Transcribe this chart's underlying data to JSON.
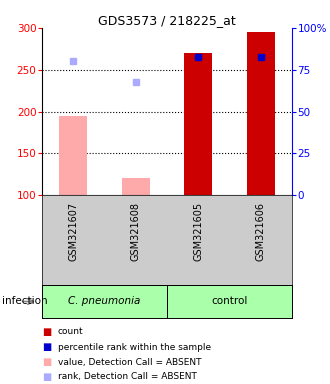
{
  "title": "GDS3573 / 218225_at",
  "samples": [
    "GSM321607",
    "GSM321608",
    "GSM321605",
    "GSM321606"
  ],
  "group_labels": [
    "C. pneumonia",
    "control"
  ],
  "ylim_left": [
    100,
    300
  ],
  "yticks_left": [
    100,
    150,
    200,
    250,
    300
  ],
  "yticks_right": [
    0,
    25,
    50,
    75,
    100
  ],
  "ytick_labels_right": [
    "0",
    "25",
    "50",
    "75",
    "100%"
  ],
  "bar_values": [
    195,
    120,
    270,
    295
  ],
  "bar_absent": [
    true,
    true,
    false,
    false
  ],
  "bar_color_present": "#cc0000",
  "bar_color_absent": "#ffaaaa",
  "rank_values": [
    80,
    67.5,
    82.5,
    82.5
  ],
  "rank_absent": [
    true,
    true,
    false,
    false
  ],
  "rank_color_present": "#0000cc",
  "rank_color_absent": "#aaaaff",
  "sample_bg_color": "#cccccc",
  "group_color": "#aaffaa",
  "legend_items": [
    {
      "color": "#cc0000",
      "label": "count"
    },
    {
      "color": "#0000cc",
      "label": "percentile rank within the sample"
    },
    {
      "color": "#ffaaaa",
      "label": "value, Detection Call = ABSENT"
    },
    {
      "color": "#aaaaff",
      "label": "rank, Detection Call = ABSENT"
    }
  ],
  "infection_label": "infection"
}
